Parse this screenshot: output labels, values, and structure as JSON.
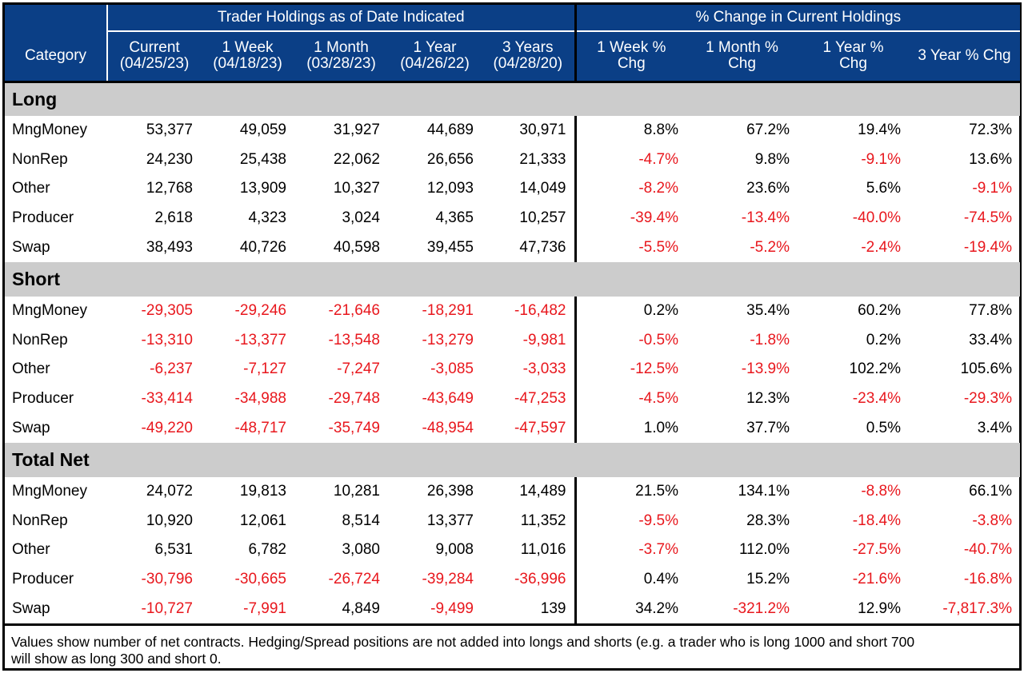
{
  "header": {
    "category_label": "Category",
    "group_holdings": "Trader Holdings as of Date Indicated",
    "group_change": "% Change in Current Holdings",
    "columns": [
      {
        "line1": "Current",
        "line2": "(04/25/23)"
      },
      {
        "line1": "1 Week",
        "line2": "(04/18/23)"
      },
      {
        "line1": "1 Month",
        "line2": "(03/28/23)"
      },
      {
        "line1": "1 Year",
        "line2": "(04/26/22)"
      },
      {
        "line1": "3 Years",
        "line2": "(04/28/20)"
      },
      {
        "line1": "1 Week %",
        "line2": "Chg"
      },
      {
        "line1": "1 Month %",
        "line2": "Chg"
      },
      {
        "line1": "1 Year %",
        "line2": "Chg"
      },
      {
        "line1": "3 Year % Chg",
        "line2": ""
      }
    ]
  },
  "sections": [
    {
      "title": "Long",
      "rows": [
        {
          "label": "MngMoney",
          "values": [
            "53,377",
            "49,059",
            "31,927",
            "44,689",
            "30,971",
            "8.8%",
            "67.2%",
            "19.4%",
            "72.3%"
          ]
        },
        {
          "label": "NonRep",
          "values": [
            "24,230",
            "25,438",
            "22,062",
            "26,656",
            "21,333",
            "-4.7%",
            "9.8%",
            "-9.1%",
            "13.6%"
          ]
        },
        {
          "label": "Other",
          "values": [
            "12,768",
            "13,909",
            "10,327",
            "12,093",
            "14,049",
            "-8.2%",
            "23.6%",
            "5.6%",
            "-9.1%"
          ]
        },
        {
          "label": "Producer",
          "values": [
            "2,618",
            "4,323",
            "3,024",
            "4,365",
            "10,257",
            "-39.4%",
            "-13.4%",
            "-40.0%",
            "-74.5%"
          ]
        },
        {
          "label": "Swap",
          "values": [
            "38,493",
            "40,726",
            "40,598",
            "39,455",
            "47,736",
            "-5.5%",
            "-5.2%",
            "-2.4%",
            "-19.4%"
          ]
        }
      ]
    },
    {
      "title": "Short",
      "rows": [
        {
          "label": "MngMoney",
          "values": [
            "-29,305",
            "-29,246",
            "-21,646",
            "-18,291",
            "-16,482",
            "0.2%",
            "35.4%",
            "60.2%",
            "77.8%"
          ]
        },
        {
          "label": "NonRep",
          "values": [
            "-13,310",
            "-13,377",
            "-13,548",
            "-13,279",
            "-9,981",
            "-0.5%",
            "-1.8%",
            "0.2%",
            "33.4%"
          ]
        },
        {
          "label": "Other",
          "values": [
            "-6,237",
            "-7,127",
            "-7,247",
            "-3,085",
            "-3,033",
            "-12.5%",
            "-13.9%",
            "102.2%",
            "105.6%"
          ]
        },
        {
          "label": "Producer",
          "values": [
            "-33,414",
            "-34,988",
            "-29,748",
            "-43,649",
            "-47,253",
            "-4.5%",
            "12.3%",
            "-23.4%",
            "-29.3%"
          ]
        },
        {
          "label": "Swap",
          "values": [
            "-49,220",
            "-48,717",
            "-35,749",
            "-48,954",
            "-47,597",
            "1.0%",
            "37.7%",
            "0.5%",
            "3.4%"
          ]
        }
      ]
    },
    {
      "title": "Total Net",
      "rows": [
        {
          "label": "MngMoney",
          "values": [
            "24,072",
            "19,813",
            "10,281",
            "26,398",
            "14,489",
            "21.5%",
            "134.1%",
            "-8.8%",
            "66.1%"
          ]
        },
        {
          "label": "NonRep",
          "values": [
            "10,920",
            "12,061",
            "8,514",
            "13,377",
            "11,352",
            "-9.5%",
            "28.3%",
            "-18.4%",
            "-3.8%"
          ]
        },
        {
          "label": "Other",
          "values": [
            "6,531",
            "6,782",
            "3,080",
            "9,008",
            "11,016",
            "-3.7%",
            "112.0%",
            "-27.5%",
            "-40.7%"
          ]
        },
        {
          "label": "Producer",
          "values": [
            "-30,796",
            "-30,665",
            "-26,724",
            "-39,284",
            "-36,996",
            "0.4%",
            "15.2%",
            "-21.6%",
            "-16.8%"
          ]
        },
        {
          "label": "Swap",
          "values": [
            "-10,727",
            "-7,991",
            "4,849",
            "-9,499",
            "139",
            "34.2%",
            "-321.2%",
            "12.9%",
            "-7,817.3%"
          ]
        }
      ]
    }
  ],
  "footer": {
    "note_line1": "Values show number of net contracts. Hedging/Spread positions are not added into longs and shorts (e.g. a trader who is long 1000 and short 700",
    "note_line2": "will show as long 300 and short 0."
  },
  "colors": {
    "header_bg": "#0b3f86",
    "section_bg": "#cccccc",
    "negative": "#e8171d"
  }
}
